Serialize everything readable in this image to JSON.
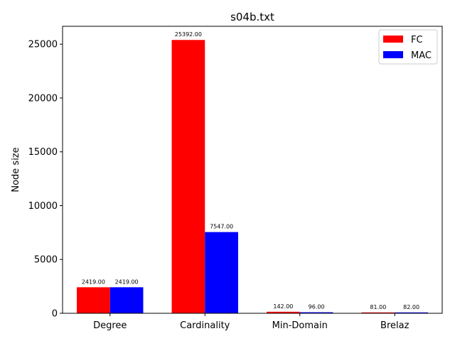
{
  "chart_data": {
    "type": "bar",
    "title": "s04b.txt",
    "xlabel": "",
    "ylabel": "Node size",
    "categories": [
      "Degree",
      "Cardinality",
      "Min-Domain",
      "Brelaz"
    ],
    "series": [
      {
        "name": "FC",
        "color": "#ff0000",
        "values": [
          2419.0,
          25392.0,
          142.0,
          81.0
        ],
        "labels": [
          "2419.00",
          "25392.00",
          "142.00",
          "81.00"
        ]
      },
      {
        "name": "MAC",
        "color": "#0000ff",
        "values": [
          2419.0,
          7547.0,
          96.0,
          82.0
        ],
        "labels": [
          "2419.00",
          "7547.00",
          "96.00",
          "82.00"
        ]
      }
    ],
    "ylim": [
      0,
      26662
    ],
    "yticks": [
      0,
      5000,
      10000,
      15000,
      20000,
      25000
    ],
    "ytick_labels": [
      "0",
      "5000",
      "10000",
      "15000",
      "20000",
      "25000"
    ],
    "grid": false,
    "legend_position": "top-right"
  }
}
